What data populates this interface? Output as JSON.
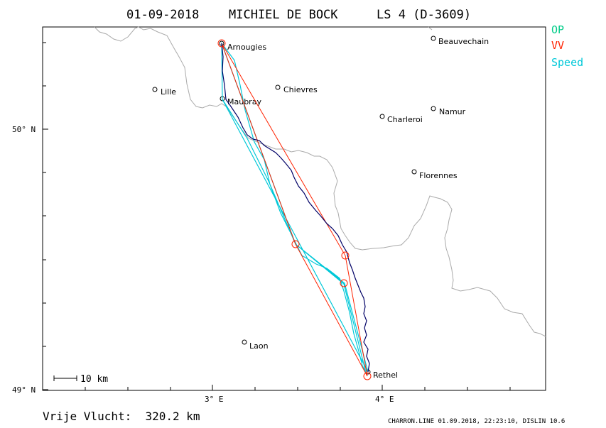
{
  "header": {
    "date": "01-09-2018",
    "pilot": "MICHIEL DE BOCK",
    "flight": "LS 4 (D-3609)"
  },
  "legend": {
    "items": [
      {
        "label": "OP",
        "color": "#00cc88"
      },
      {
        "label": "VV",
        "color": "#ff2200"
      },
      {
        "label": "Speed",
        "color": "#00c8d8"
      }
    ]
  },
  "axes": {
    "lat_labels": [
      "50° N",
      "49° N"
    ],
    "lon_labels": [
      "3° E",
      "4° E"
    ]
  },
  "places": [
    {
      "name": "Arnougies"
    },
    {
      "name": "Beauvechain"
    },
    {
      "name": "Lille"
    },
    {
      "name": "Chievres"
    },
    {
      "name": "Maubray"
    },
    {
      "name": "Charleroi"
    },
    {
      "name": "Namur"
    },
    {
      "name": "Florennes"
    },
    {
      "name": "Laon"
    },
    {
      "name": "Rethel"
    }
  ],
  "scale_bar": {
    "label": "10 km"
  },
  "footer": {
    "distance": "Vrije Vlucht:  320.2 km",
    "credit": "CHARRON.LINE 01.09.2018, 22:23:10, DISLIN 10.6"
  },
  "colors": {
    "track": "#000066",
    "vv_line": "#ff2200",
    "speed_line": "#00c8d8",
    "op_line": "#00cc88",
    "border": "#aaaaaa"
  }
}
